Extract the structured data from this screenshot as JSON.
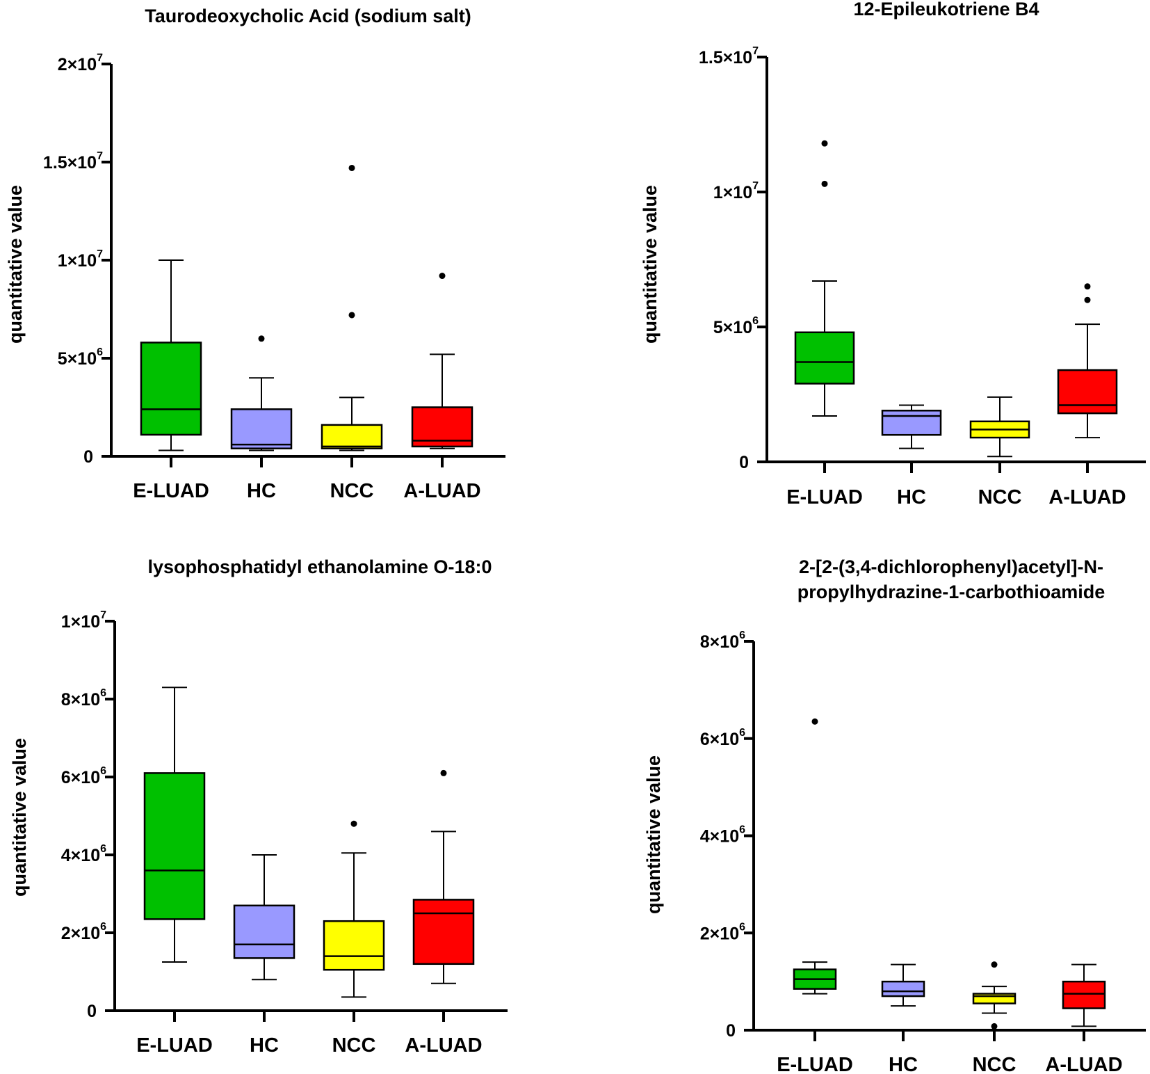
{
  "figure": {
    "ylabel": "quantitative value"
  },
  "chart_data": [
    {
      "type": "box",
      "title_lines": [
        "Taurodeoxycholic Acid (sodium salt)"
      ],
      "ylabel": "quantitative value",
      "categories": [
        "E-LUAD",
        "HC",
        "NCC",
        "A-LUAD"
      ],
      "ylim": [
        0,
        20000000
      ],
      "yticks": [
        {
          "value": 0,
          "mant": "0",
          "exp": ""
        },
        {
          "value": 5000000,
          "mant": "5×10",
          "exp": "6"
        },
        {
          "value": 10000000,
          "mant": "1×10",
          "exp": "7"
        },
        {
          "value": 15000000,
          "mant": "1.5×10",
          "exp": "7"
        },
        {
          "value": 20000000,
          "mant": "2×10",
          "exp": "7"
        }
      ],
      "boxes": [
        {
          "group": "E-LUAD",
          "color": "#00c000",
          "min": 300000,
          "q1": 1100000,
          "median": 2400000,
          "q3": 5800000,
          "max": 10000000,
          "outliers": []
        },
        {
          "group": "HC",
          "color": "#9999ff",
          "min": 300000,
          "q1": 400000,
          "median": 600000,
          "q3": 2400000,
          "max": 4000000,
          "outliers": [
            6000000
          ]
        },
        {
          "group": "NCC",
          "color": "#ffff00",
          "min": 300000,
          "q1": 400000,
          "median": 500000,
          "q3": 1600000,
          "max": 3000000,
          "outliers": [
            7200000,
            14700000
          ]
        },
        {
          "group": "A-LUAD",
          "color": "#ff0000",
          "min": 400000,
          "q1": 500000,
          "median": 800000,
          "q3": 2500000,
          "max": 5200000,
          "outliers": [
            9200000
          ]
        }
      ]
    },
    {
      "type": "box",
      "title_lines": [
        "12-Epileukotriene B4"
      ],
      "ylabel": "quantitative value",
      "categories": [
        "E-LUAD",
        "HC",
        "NCC",
        "A-LUAD"
      ],
      "ylim": [
        0,
        15000000
      ],
      "yticks": [
        {
          "value": 0,
          "mant": "0",
          "exp": ""
        },
        {
          "value": 5000000,
          "mant": "5×10",
          "exp": "6"
        },
        {
          "value": 10000000,
          "mant": "1×10",
          "exp": "7"
        },
        {
          "value": 15000000,
          "mant": "1.5×10",
          "exp": "7"
        }
      ],
      "boxes": [
        {
          "group": "E-LUAD",
          "color": "#00c000",
          "min": 1700000,
          "q1": 2900000,
          "median": 3700000,
          "q3": 4800000,
          "max": 6700000,
          "outliers": [
            10300000,
            11800000
          ]
        },
        {
          "group": "HC",
          "color": "#9999ff",
          "min": 500000,
          "q1": 1000000,
          "median": 1700000,
          "q3": 1900000,
          "max": 2100000,
          "outliers": []
        },
        {
          "group": "NCC",
          "color": "#ffff00",
          "min": 200000,
          "q1": 900000,
          "median": 1200000,
          "q3": 1500000,
          "max": 2400000,
          "outliers": []
        },
        {
          "group": "A-LUAD",
          "color": "#ff0000",
          "min": 900000,
          "q1": 1800000,
          "median": 2100000,
          "q3": 3400000,
          "max": 5100000,
          "outliers": [
            6000000,
            6500000
          ]
        }
      ]
    },
    {
      "type": "box",
      "title_lines": [
        "lysophosphatidyl ethanolamine O-18:0"
      ],
      "ylabel": "quantitative value",
      "categories": [
        "E-LUAD",
        "HC",
        "NCC",
        "A-LUAD"
      ],
      "ylim": [
        0,
        10000000
      ],
      "yticks": [
        {
          "value": 0,
          "mant": "0",
          "exp": ""
        },
        {
          "value": 2000000,
          "mant": "2×10",
          "exp": "6"
        },
        {
          "value": 4000000,
          "mant": "4×10",
          "exp": "6"
        },
        {
          "value": 6000000,
          "mant": "6×10",
          "exp": "6"
        },
        {
          "value": 8000000,
          "mant": "8×10",
          "exp": "6"
        },
        {
          "value": 10000000,
          "mant": "1×10",
          "exp": "7"
        }
      ],
      "boxes": [
        {
          "group": "E-LUAD",
          "color": "#00c000",
          "min": 1250000,
          "q1": 2350000,
          "median": 3600000,
          "q3": 6100000,
          "max": 8300000,
          "outliers": []
        },
        {
          "group": "HC",
          "color": "#9999ff",
          "min": 800000,
          "q1": 1350000,
          "median": 1700000,
          "q3": 2700000,
          "max": 4000000,
          "outliers": []
        },
        {
          "group": "NCC",
          "color": "#ffff00",
          "min": 350000,
          "q1": 1050000,
          "median": 1400000,
          "q3": 2300000,
          "max": 4050000,
          "outliers": [
            4800000
          ]
        },
        {
          "group": "A-LUAD",
          "color": "#ff0000",
          "min": 700000,
          "q1": 1200000,
          "median": 2500000,
          "q3": 2850000,
          "max": 4600000,
          "outliers": [
            6100000
          ]
        }
      ]
    },
    {
      "type": "box",
      "title_lines": [
        "2-[2-(3,4-dichlorophenyl)acetyl]-N-",
        "propylhydrazine-1-carbothioamide"
      ],
      "ylabel": "quantitative value",
      "categories": [
        "E-LUAD",
        "HC",
        "NCC",
        "A-LUAD"
      ],
      "ylim": [
        0,
        8000000
      ],
      "yticks": [
        {
          "value": 0,
          "mant": "0",
          "exp": ""
        },
        {
          "value": 2000000,
          "mant": "2×10",
          "exp": "6"
        },
        {
          "value": 4000000,
          "mant": "4×10",
          "exp": "6"
        },
        {
          "value": 6000000,
          "mant": "6×10",
          "exp": "6"
        },
        {
          "value": 8000000,
          "mant": "8×10",
          "exp": "6"
        }
      ],
      "boxes": [
        {
          "group": "E-LUAD",
          "color": "#00c000",
          "min": 750000,
          "q1": 850000,
          "median": 1050000,
          "q3": 1250000,
          "max": 1400000,
          "outliers": [
            6350000
          ]
        },
        {
          "group": "HC",
          "color": "#9999ff",
          "min": 500000,
          "q1": 700000,
          "median": 800000,
          "q3": 1000000,
          "max": 1350000,
          "outliers": []
        },
        {
          "group": "NCC",
          "color": "#ffff00",
          "min": 350000,
          "q1": 550000,
          "median": 700000,
          "q3": 750000,
          "max": 900000,
          "outliers": [
            80000,
            1350000
          ]
        },
        {
          "group": "A-LUAD",
          "color": "#ff0000",
          "min": 80000,
          "q1": 450000,
          "median": 750000,
          "q3": 1000000,
          "max": 1350000,
          "outliers": []
        }
      ]
    }
  ]
}
